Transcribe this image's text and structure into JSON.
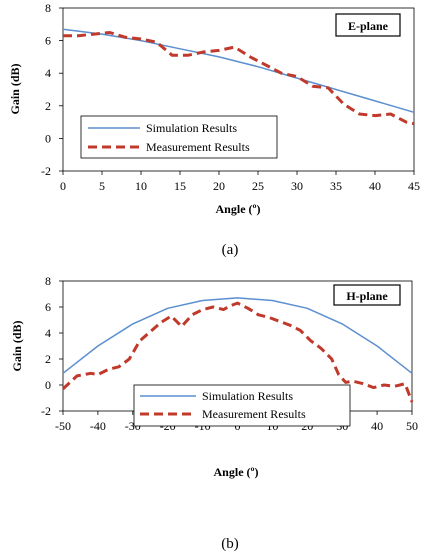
{
  "chart_data": [
    {
      "type": "line",
      "title": "E-plane",
      "xlabel": "Angle (º)",
      "ylabel": "Gain (dB)",
      "xlim": [
        0,
        45
      ],
      "ylim": [
        -2,
        8
      ],
      "xticks": [
        0,
        5,
        10,
        15,
        20,
        25,
        30,
        35,
        40,
        45
      ],
      "yticks": [
        -2,
        0,
        2,
        4,
        6,
        8
      ],
      "grid": false,
      "legend_position": "bottom-left",
      "series": [
        {
          "name": "Simulation Results",
          "color": "#5b8fcf",
          "style": "solid",
          "x": [
            0,
            5,
            10,
            15,
            20,
            25,
            30,
            35,
            40,
            45
          ],
          "y": [
            6.7,
            6.4,
            6.0,
            5.5,
            5.0,
            4.4,
            3.7,
            3.0,
            2.3,
            1.6
          ]
        },
        {
          "name": "Measurement Results",
          "color": "#c0392b",
          "style": "dashed",
          "x": [
            0,
            2,
            4,
            6,
            8,
            10,
            12,
            14,
            16,
            18,
            20,
            22,
            24,
            26,
            28,
            30,
            32,
            34,
            36,
            38,
            40,
            42,
            44,
            45
          ],
          "y": [
            6.3,
            6.3,
            6.4,
            6.5,
            6.2,
            6.1,
            5.9,
            5.1,
            5.1,
            5.3,
            5.4,
            5.6,
            5.0,
            4.5,
            4.0,
            3.8,
            3.2,
            3.1,
            2.1,
            1.5,
            1.4,
            1.5,
            1.0,
            0.9
          ]
        }
      ]
    },
    {
      "type": "line",
      "title": "H-plane",
      "xlabel": "Angle (º)",
      "ylabel": "Gain (dB)",
      "xlim": [
        -50,
        50
      ],
      "ylim": [
        -2,
        8
      ],
      "xticks": [
        -50,
        -40,
        -30,
        -20,
        -10,
        0,
        10,
        20,
        30,
        40,
        50
      ],
      "yticks": [
        -2,
        0,
        2,
        4,
        6,
        8
      ],
      "grid": false,
      "legend_position": "bottom-center",
      "series": [
        {
          "name": "Simulation Results",
          "color": "#5b8fcf",
          "style": "solid",
          "x": [
            -50,
            -40,
            -30,
            -20,
            -10,
            0,
            10,
            20,
            30,
            40,
            50
          ],
          "y": [
            0.9,
            3.0,
            4.7,
            5.9,
            6.5,
            6.7,
            6.5,
            5.9,
            4.7,
            3.0,
            0.9
          ]
        },
        {
          "name": "Measurement Results",
          "color": "#c0392b",
          "style": "dashed",
          "x": [
            -50,
            -46,
            -42,
            -40,
            -37,
            -34,
            -31,
            -28,
            -25,
            -22,
            -19,
            -16,
            -13,
            -10,
            -7,
            -4,
            -2,
            0,
            3,
            6,
            9,
            12,
            15,
            18,
            21,
            24,
            27,
            29,
            31,
            33,
            36,
            39,
            42,
            45,
            48,
            50
          ],
          "y": [
            -0.3,
            0.7,
            0.9,
            0.8,
            1.2,
            1.4,
            2.0,
            3.4,
            4.1,
            4.8,
            5.3,
            4.5,
            5.4,
            5.8,
            6.0,
            5.8,
            6.1,
            6.3,
            5.9,
            5.4,
            5.2,
            4.9,
            4.6,
            4.2,
            3.4,
            2.8,
            2.0,
            0.8,
            0.2,
            0.3,
            0.1,
            -0.2,
            0.0,
            -0.1,
            0.1,
            -1.3
          ]
        }
      ]
    }
  ],
  "captions": [
    "(a)",
    "(b)"
  ]
}
